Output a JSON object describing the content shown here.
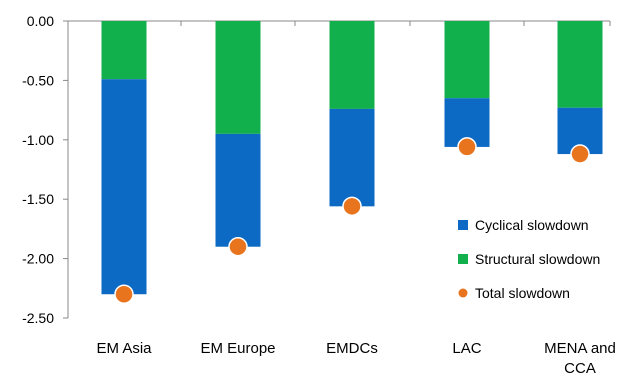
{
  "chart_data": {
    "type": "bar",
    "stacked": true,
    "categories": [
      "EM Asia",
      "EM Europe",
      "EMDCs",
      "LAC",
      "MENA and CCA"
    ],
    "series": [
      {
        "name": "Cyclical slowdown",
        "kind": "bar",
        "color": "#0c6ac4",
        "values": [
          -1.81,
          -0.95,
          -0.82,
          -0.41,
          -0.39
        ]
      },
      {
        "name": "Structural slowdown",
        "kind": "bar",
        "color": "#12b04c",
        "values": [
          -0.49,
          -0.95,
          -0.74,
          -0.65,
          -0.73
        ]
      },
      {
        "name": "Total slowdown",
        "kind": "marker",
        "color": "#e8741e",
        "values": [
          -2.3,
          -1.9,
          -1.56,
          -1.06,
          -1.12
        ]
      }
    ],
    "ylim": [
      -2.5,
      0
    ],
    "yticks": [
      "0.00",
      "-0.50",
      "-1.00",
      "-1.50",
      "-2.00",
      "-2.50"
    ],
    "ytick_values": [
      0,
      -0.5,
      -1.0,
      -1.5,
      -2.0,
      -2.5
    ],
    "grid": false,
    "legend_position": "right",
    "title": "",
    "xlabel": "",
    "ylabel": ""
  }
}
